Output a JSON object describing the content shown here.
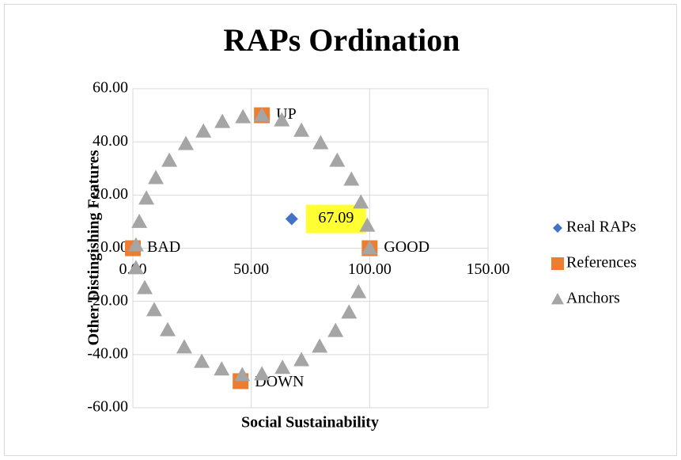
{
  "chart_data": {
    "type": "scatter",
    "title": "RAPs Ordination",
    "x_label": "Social Sustainability",
    "y_label": "Other Distingishing Features",
    "xlim": [
      0,
      150
    ],
    "ylim": [
      -60,
      60
    ],
    "xticks": [
      {
        "value": 0,
        "label": "0.00"
      },
      {
        "value": 50,
        "label": "50.00"
      },
      {
        "value": 100,
        "label": "100.00"
      },
      {
        "value": 150,
        "label": "150.00"
      }
    ],
    "yticks": [
      {
        "value": -60,
        "label": "-60.00"
      },
      {
        "value": -40,
        "label": "-40.00"
      },
      {
        "value": -20,
        "label": "-20.00"
      },
      {
        "value": 0,
        "label": "0.00"
      },
      {
        "value": 20,
        "label": "20.00"
      },
      {
        "value": 40,
        "label": "40.00"
      },
      {
        "value": 60,
        "label": "60.00"
      }
    ],
    "grid": true,
    "legend": "right",
    "series": [
      {
        "name": "Real RAPs",
        "color": "#4472c4",
        "marker": "diamond",
        "x": [
          67.09
        ],
        "values": [
          11
        ],
        "x_labels": [
          "67.09"
        ]
      },
      {
        "name": "References",
        "color": "#ed7d31",
        "marker": "square",
        "x": [
          100,
          0,
          54.5,
          45.5
        ],
        "values": [
          0,
          0,
          50,
          -50
        ],
        "labels": [
          "GOOD",
          "BAD",
          "UP",
          "DOWN"
        ]
      },
      {
        "name": "Anchors",
        "color": "#a5a5a5",
        "marker": "triangle",
        "x": [
          1.3,
          2.7,
          5.7,
          9.7,
          15.4,
          22.4,
          29.8,
          37.8,
          46.5,
          54.5,
          62.9,
          71.2,
          79.3,
          86.3,
          92.3,
          96.3,
          99,
          100,
          1.3,
          5,
          9,
          14.7,
          21.7,
          29.1,
          37.5,
          46.2,
          54.5,
          63.2,
          71.2,
          78.9,
          85.6,
          91.3,
          95.3
        ],
        "values": [
          1.2,
          10,
          18.8,
          26.5,
          33,
          39.3,
          44,
          47.6,
          49.4,
          50,
          48.2,
          44.3,
          39.6,
          33,
          25.9,
          17.3,
          8.6,
          0,
          -7.4,
          -14.9,
          -23.2,
          -30.7,
          -37.2,
          -42.6,
          -45.5,
          -47.6,
          -47.3,
          -44.9,
          -42,
          -36.9,
          -31,
          -24.1,
          -16.4
        ]
      }
    ]
  }
}
